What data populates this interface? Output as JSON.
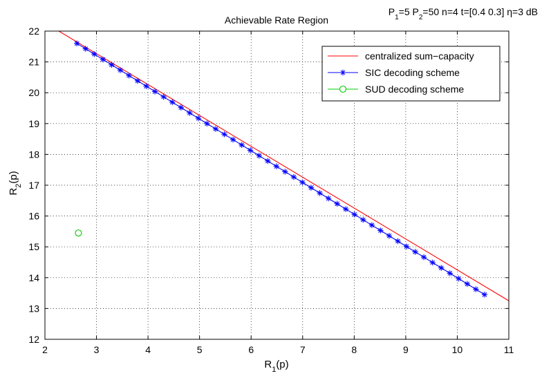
{
  "chart_data": {
    "type": "line",
    "title": "Achievable Rate Region",
    "annotation": {
      "parts": [
        {
          "t": "P",
          "sub": false
        },
        {
          "t": "1",
          "sub": true
        },
        {
          "t": "=5 P",
          "sub": false
        },
        {
          "t": "2",
          "sub": true
        },
        {
          "t": "=50 n=4 t=[0.4 0.3] η=3 dB",
          "sub": false
        }
      ]
    },
    "xlabel": {
      "base": "R",
      "sub": "1",
      "rest": "(p)"
    },
    "ylabel": {
      "base": "R",
      "sub": "2",
      "rest": "(p)"
    },
    "xlim": [
      2,
      11
    ],
    "ylim": [
      12,
      22
    ],
    "xticks": [
      2,
      3,
      4,
      5,
      6,
      7,
      8,
      9,
      10,
      11
    ],
    "yticks": [
      12,
      13,
      14,
      15,
      16,
      17,
      18,
      19,
      20,
      21,
      22
    ],
    "grid": true,
    "legend_position": "top-right",
    "series": [
      {
        "name": "centralized sum−capacity",
        "style": "line",
        "color": "#ff0000",
        "x": [
          2.27,
          11.0
        ],
        "y": [
          22.0,
          13.25
        ]
      },
      {
        "name": "SIC decoding scheme",
        "style": "line-star",
        "color": "#0000ff",
        "x_start": 2.62,
        "x_end": 10.53,
        "y_start": 21.6,
        "y_end": 13.45,
        "points": 48
      },
      {
        "name": "SUD decoding scheme",
        "style": "circle",
        "color": "#00cc00",
        "x": [
          2.65
        ],
        "y": [
          15.45
        ]
      }
    ]
  }
}
